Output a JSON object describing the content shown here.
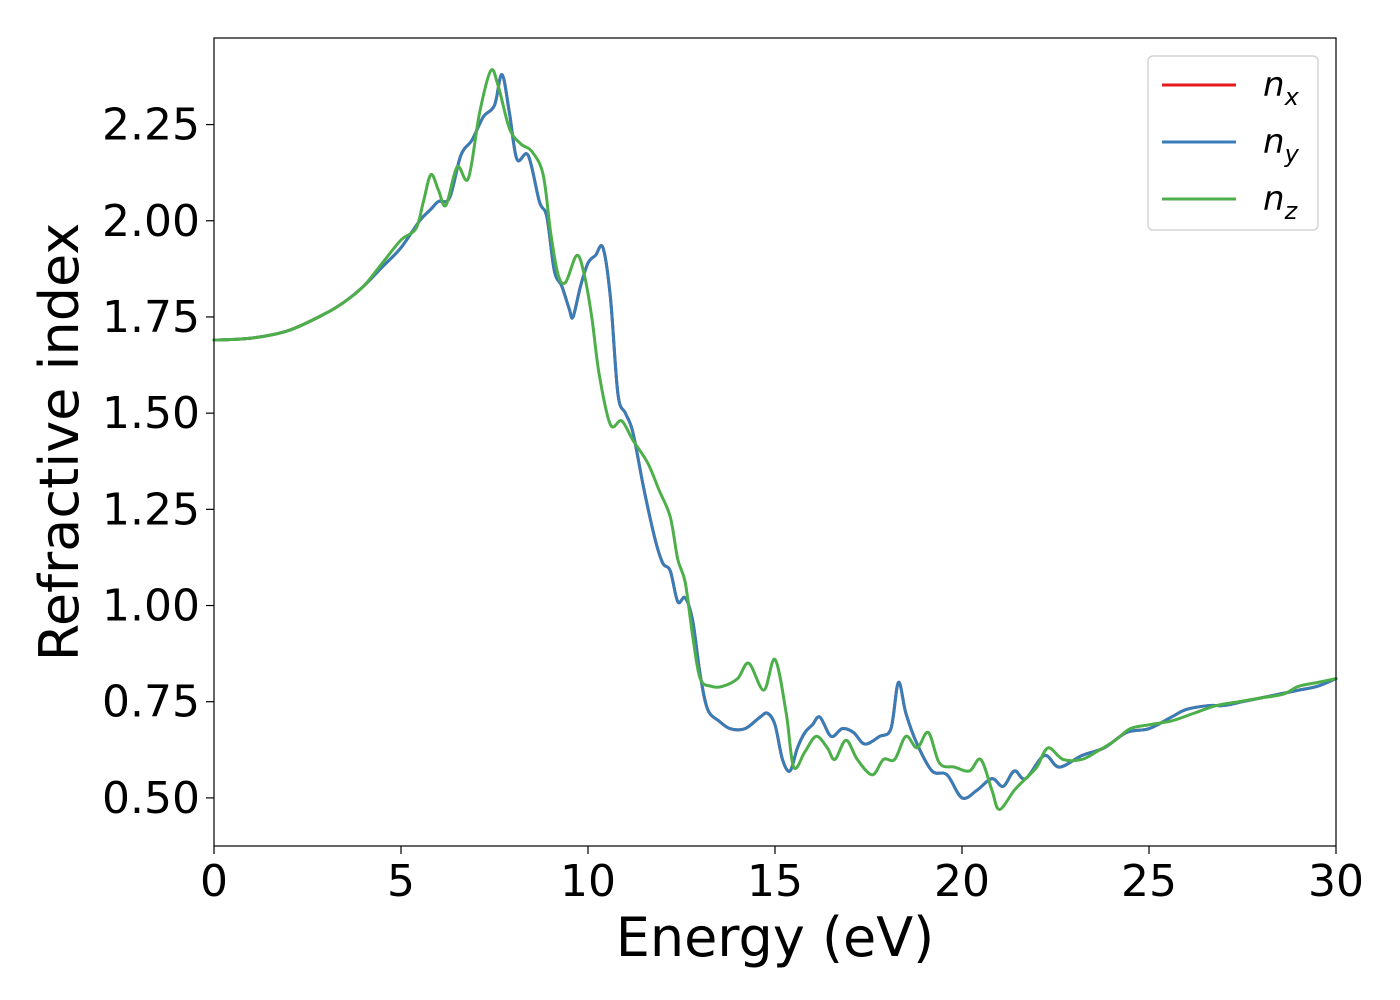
{
  "chart_data": {
    "type": "line",
    "xlabel": "Energy (eV)",
    "ylabel": "Refractive index",
    "xlim": [
      0,
      30
    ],
    "ylim": [
      0.375,
      2.475
    ],
    "xticks": [
      0,
      5,
      10,
      15,
      20,
      25,
      30
    ],
    "xtick_labels": [
      "0",
      "5",
      "10",
      "15",
      "20",
      "25",
      "30"
    ],
    "yticks": [
      0.5,
      0.75,
      1.0,
      1.25,
      1.5,
      1.75,
      2.0,
      2.25
    ],
    "ytick_labels": [
      "0.50",
      "0.75",
      "1.00",
      "1.25",
      "1.50",
      "1.75",
      "2.00",
      "2.25"
    ],
    "grid": false,
    "legend_position": "top-right",
    "series": [
      {
        "name": "n_x",
        "legend_base": "n",
        "legend_sub": "x",
        "color": "#e41a1c",
        "points": [
          [
            0,
            1.69
          ],
          [
            1,
            1.695
          ],
          [
            2,
            1.715
          ],
          [
            3,
            1.76
          ],
          [
            3.5,
            1.79
          ],
          [
            4,
            1.83
          ],
          [
            4.5,
            1.88
          ],
          [
            5,
            1.93
          ],
          [
            5.5,
            2.0
          ],
          [
            5.8,
            2.03
          ],
          [
            6,
            2.05
          ],
          [
            6.3,
            2.06
          ],
          [
            6.6,
            2.17
          ],
          [
            6.9,
            2.21
          ],
          [
            7.2,
            2.27
          ],
          [
            7.5,
            2.3
          ],
          [
            7.7,
            2.38
          ],
          [
            7.9,
            2.28
          ],
          [
            8.1,
            2.16
          ],
          [
            8.4,
            2.17
          ],
          [
            8.7,
            2.05
          ],
          [
            8.9,
            2.01
          ],
          [
            9.1,
            1.87
          ],
          [
            9.3,
            1.83
          ],
          [
            9.5,
            1.77
          ],
          [
            9.6,
            1.75
          ],
          [
            9.8,
            1.83
          ],
          [
            10.0,
            1.89
          ],
          [
            10.2,
            1.91
          ],
          [
            10.4,
            1.93
          ],
          [
            10.6,
            1.8
          ],
          [
            10.8,
            1.55
          ],
          [
            11.0,
            1.5
          ],
          [
            11.2,
            1.45
          ],
          [
            11.5,
            1.3
          ],
          [
            11.8,
            1.17
          ],
          [
            12.0,
            1.11
          ],
          [
            12.2,
            1.09
          ],
          [
            12.4,
            1.01
          ],
          [
            12.6,
            1.02
          ],
          [
            12.8,
            0.96
          ],
          [
            13.0,
            0.82
          ],
          [
            13.2,
            0.73
          ],
          [
            13.5,
            0.7
          ],
          [
            13.8,
            0.68
          ],
          [
            14.2,
            0.68
          ],
          [
            14.6,
            0.71
          ],
          [
            14.8,
            0.72
          ],
          [
            15.0,
            0.69
          ],
          [
            15.2,
            0.6
          ],
          [
            15.4,
            0.57
          ],
          [
            15.6,
            0.63
          ],
          [
            15.8,
            0.67
          ],
          [
            16.0,
            0.69
          ],
          [
            16.2,
            0.71
          ],
          [
            16.5,
            0.66
          ],
          [
            16.8,
            0.68
          ],
          [
            17.1,
            0.67
          ],
          [
            17.4,
            0.64
          ],
          [
            17.8,
            0.66
          ],
          [
            18.1,
            0.68
          ],
          [
            18.3,
            0.8
          ],
          [
            18.5,
            0.72
          ],
          [
            18.8,
            0.64
          ],
          [
            19.2,
            0.57
          ],
          [
            19.6,
            0.56
          ],
          [
            20.0,
            0.5
          ],
          [
            20.4,
            0.52
          ],
          [
            20.8,
            0.55
          ],
          [
            21.1,
            0.53
          ],
          [
            21.4,
            0.57
          ],
          [
            21.7,
            0.55
          ],
          [
            22.2,
            0.61
          ],
          [
            22.6,
            0.58
          ],
          [
            23.2,
            0.61
          ],
          [
            23.8,
            0.63
          ],
          [
            24.4,
            0.67
          ],
          [
            25.0,
            0.68
          ],
          [
            25.6,
            0.71
          ],
          [
            26.0,
            0.73
          ],
          [
            26.6,
            0.74
          ],
          [
            27.0,
            0.74
          ],
          [
            27.5,
            0.75
          ],
          [
            28.0,
            0.76
          ],
          [
            28.5,
            0.77
          ],
          [
            29.0,
            0.78
          ],
          [
            29.5,
            0.79
          ],
          [
            30,
            0.81
          ]
        ]
      },
      {
        "name": "n_y",
        "legend_base": "n",
        "legend_sub": "y",
        "color": "#377eb8",
        "points": [
          [
            0,
            1.69
          ],
          [
            1,
            1.695
          ],
          [
            2,
            1.715
          ],
          [
            3,
            1.76
          ],
          [
            3.5,
            1.79
          ],
          [
            4,
            1.83
          ],
          [
            4.5,
            1.88
          ],
          [
            5,
            1.93
          ],
          [
            5.5,
            2.0
          ],
          [
            5.8,
            2.03
          ],
          [
            6,
            2.05
          ],
          [
            6.3,
            2.06
          ],
          [
            6.6,
            2.17
          ],
          [
            6.9,
            2.21
          ],
          [
            7.2,
            2.27
          ],
          [
            7.5,
            2.3
          ],
          [
            7.7,
            2.38
          ],
          [
            7.9,
            2.28
          ],
          [
            8.1,
            2.16
          ],
          [
            8.4,
            2.17
          ],
          [
            8.7,
            2.05
          ],
          [
            8.9,
            2.01
          ],
          [
            9.1,
            1.87
          ],
          [
            9.3,
            1.83
          ],
          [
            9.5,
            1.77
          ],
          [
            9.6,
            1.75
          ],
          [
            9.8,
            1.83
          ],
          [
            10.0,
            1.89
          ],
          [
            10.2,
            1.91
          ],
          [
            10.4,
            1.93
          ],
          [
            10.6,
            1.8
          ],
          [
            10.8,
            1.55
          ],
          [
            11.0,
            1.5
          ],
          [
            11.2,
            1.45
          ],
          [
            11.5,
            1.3
          ],
          [
            11.8,
            1.17
          ],
          [
            12.0,
            1.11
          ],
          [
            12.2,
            1.09
          ],
          [
            12.4,
            1.01
          ],
          [
            12.6,
            1.02
          ],
          [
            12.8,
            0.96
          ],
          [
            13.0,
            0.82
          ],
          [
            13.2,
            0.73
          ],
          [
            13.5,
            0.7
          ],
          [
            13.8,
            0.68
          ],
          [
            14.2,
            0.68
          ],
          [
            14.6,
            0.71
          ],
          [
            14.8,
            0.72
          ],
          [
            15.0,
            0.69
          ],
          [
            15.2,
            0.6
          ],
          [
            15.4,
            0.57
          ],
          [
            15.6,
            0.63
          ],
          [
            15.8,
            0.67
          ],
          [
            16.0,
            0.69
          ],
          [
            16.2,
            0.71
          ],
          [
            16.5,
            0.66
          ],
          [
            16.8,
            0.68
          ],
          [
            17.1,
            0.67
          ],
          [
            17.4,
            0.64
          ],
          [
            17.8,
            0.66
          ],
          [
            18.1,
            0.68
          ],
          [
            18.3,
            0.8
          ],
          [
            18.5,
            0.72
          ],
          [
            18.8,
            0.64
          ],
          [
            19.2,
            0.57
          ],
          [
            19.6,
            0.56
          ],
          [
            20.0,
            0.5
          ],
          [
            20.4,
            0.52
          ],
          [
            20.8,
            0.55
          ],
          [
            21.1,
            0.53
          ],
          [
            21.4,
            0.57
          ],
          [
            21.7,
            0.55
          ],
          [
            22.2,
            0.61
          ],
          [
            22.6,
            0.58
          ],
          [
            23.2,
            0.61
          ],
          [
            23.8,
            0.63
          ],
          [
            24.4,
            0.67
          ],
          [
            25.0,
            0.68
          ],
          [
            25.6,
            0.71
          ],
          [
            26.0,
            0.73
          ],
          [
            26.6,
            0.74
          ],
          [
            27.0,
            0.74
          ],
          [
            27.5,
            0.75
          ],
          [
            28.0,
            0.76
          ],
          [
            28.5,
            0.77
          ],
          [
            29.0,
            0.78
          ],
          [
            29.5,
            0.79
          ],
          [
            30,
            0.81
          ]
        ]
      },
      {
        "name": "n_z",
        "legend_base": "n",
        "legend_sub": "z",
        "color": "#4daf4a",
        "points": [
          [
            0,
            1.69
          ],
          [
            1,
            1.695
          ],
          [
            2,
            1.715
          ],
          [
            3,
            1.76
          ],
          [
            3.5,
            1.79
          ],
          [
            4,
            1.83
          ],
          [
            4.5,
            1.89
          ],
          [
            5,
            1.95
          ],
          [
            5.4,
            1.98
          ],
          [
            5.6,
            2.05
          ],
          [
            5.8,
            2.12
          ],
          [
            6.0,
            2.08
          ],
          [
            6.2,
            2.04
          ],
          [
            6.5,
            2.14
          ],
          [
            6.8,
            2.11
          ],
          [
            7.1,
            2.28
          ],
          [
            7.4,
            2.39
          ],
          [
            7.6,
            2.35
          ],
          [
            7.9,
            2.24
          ],
          [
            8.2,
            2.2
          ],
          [
            8.5,
            2.18
          ],
          [
            8.8,
            2.12
          ],
          [
            9.0,
            1.97
          ],
          [
            9.2,
            1.86
          ],
          [
            9.4,
            1.84
          ],
          [
            9.7,
            1.91
          ],
          [
            9.9,
            1.86
          ],
          [
            10.1,
            1.75
          ],
          [
            10.3,
            1.6
          ],
          [
            10.6,
            1.47
          ],
          [
            10.9,
            1.48
          ],
          [
            11.2,
            1.43
          ],
          [
            11.6,
            1.37
          ],
          [
            11.9,
            1.3
          ],
          [
            12.2,
            1.23
          ],
          [
            12.4,
            1.12
          ],
          [
            12.6,
            1.06
          ],
          [
            12.8,
            0.92
          ],
          [
            13.0,
            0.81
          ],
          [
            13.3,
            0.79
          ],
          [
            13.6,
            0.79
          ],
          [
            14.0,
            0.81
          ],
          [
            14.3,
            0.85
          ],
          [
            14.7,
            0.78
          ],
          [
            15.0,
            0.86
          ],
          [
            15.3,
            0.72
          ],
          [
            15.5,
            0.58
          ],
          [
            15.8,
            0.62
          ],
          [
            16.1,
            0.66
          ],
          [
            16.4,
            0.63
          ],
          [
            16.6,
            0.6
          ],
          [
            16.9,
            0.65
          ],
          [
            17.2,
            0.6
          ],
          [
            17.6,
            0.56
          ],
          [
            17.9,
            0.6
          ],
          [
            18.2,
            0.6
          ],
          [
            18.5,
            0.66
          ],
          [
            18.8,
            0.63
          ],
          [
            19.1,
            0.67
          ],
          [
            19.4,
            0.59
          ],
          [
            19.8,
            0.58
          ],
          [
            20.2,
            0.57
          ],
          [
            20.5,
            0.6
          ],
          [
            20.8,
            0.52
          ],
          [
            21.0,
            0.47
          ],
          [
            21.4,
            0.52
          ],
          [
            21.7,
            0.55
          ],
          [
            22.0,
            0.58
          ],
          [
            22.3,
            0.63
          ],
          [
            22.7,
            0.6
          ],
          [
            23.2,
            0.6
          ],
          [
            23.6,
            0.62
          ],
          [
            24.1,
            0.65
          ],
          [
            24.5,
            0.68
          ],
          [
            25.0,
            0.69
          ],
          [
            25.6,
            0.7
          ],
          [
            26.2,
            0.72
          ],
          [
            26.8,
            0.74
          ],
          [
            27.4,
            0.75
          ],
          [
            28.0,
            0.76
          ],
          [
            28.6,
            0.77
          ],
          [
            29.0,
            0.79
          ],
          [
            29.5,
            0.8
          ],
          [
            30,
            0.81
          ]
        ]
      }
    ]
  }
}
